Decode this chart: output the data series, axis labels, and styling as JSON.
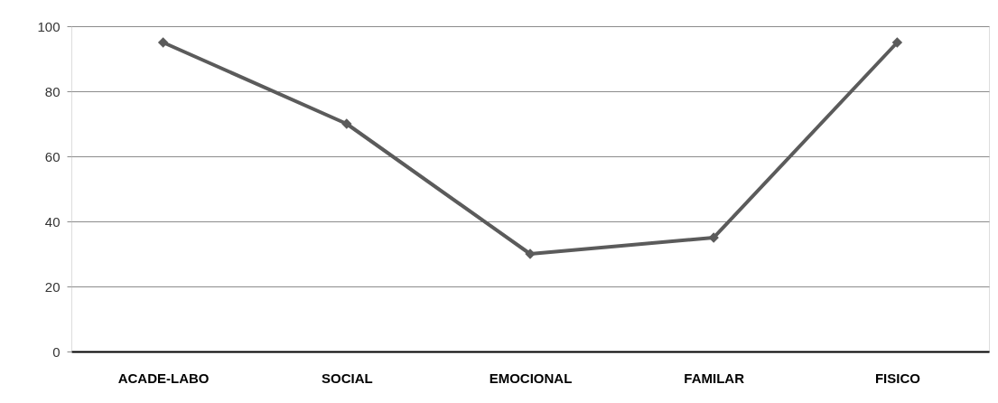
{
  "chart_data": {
    "type": "line",
    "categories": [
      "ACADE-LABO",
      "SOCIAL",
      "EMOCIONAL",
      "FAMILAR",
      "FISICO"
    ],
    "series": [
      {
        "color": "#5b5b5b",
        "values": [
          95,
          70,
          30,
          35,
          95
        ]
      }
    ],
    "ylim": [
      0,
      100
    ],
    "yticks": [
      0,
      20,
      40,
      60,
      80,
      100
    ],
    "grid": "y",
    "marker": "diamond",
    "line_style": "solid"
  }
}
